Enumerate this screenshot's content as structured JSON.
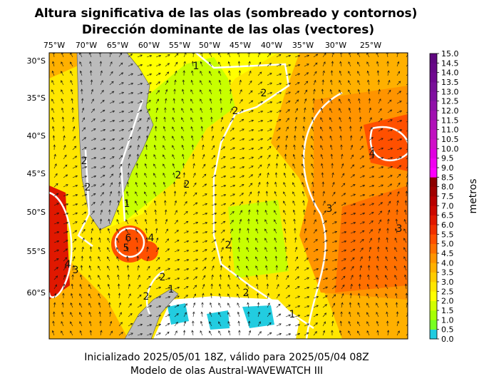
{
  "title": [
    "Altura significativa de las olas (sombreado y contornos)",
    "Dirección dominante de las olas (vectores)"
  ],
  "lon_labels": [
    "75°W",
    "70°W",
    "65°W",
    "60°W",
    "55°W",
    "50°W",
    "45°W",
    "40°W",
    "35°W",
    "30°W",
    "25°W"
  ],
  "lat_labels": [
    "30°S",
    "35°S",
    "40°S",
    "45°S",
    "50°S",
    "55°S",
    "60°S"
  ],
  "contour_labels": [
    "1",
    "2",
    "2",
    "4",
    "3",
    "3",
    "2",
    "2",
    "1",
    "4",
    "3",
    "6",
    "5",
    "4",
    "2",
    "2",
    "1",
    "2",
    "2",
    "1",
    "2",
    "2"
  ],
  "colorbar": {
    "label": "metros",
    "ticks": [
      "0.0",
      "0.5",
      "1.0",
      "1.5",
      "2.0",
      "2.5",
      "3.0",
      "3.5",
      "4.0",
      "4.5",
      "5.0",
      "5.5",
      "6.0",
      "6.5",
      "7.0",
      "7.5",
      "8.0",
      "8.5",
      "9.0",
      "9.5",
      "10.0",
      "10.5",
      "11.0",
      "11.5",
      "12.0",
      "12.5",
      "13.0",
      "13.5",
      "14.0",
      "14.5",
      "15.0"
    ],
    "colors": [
      "#22cce0",
      "#77ff22",
      "#a6ff00",
      "#d2ff00",
      "#ffff00",
      "#ffe600",
      "#ffcc00",
      "#ffb000",
      "#ff9400",
      "#ff7000",
      "#ff5000",
      "#f03000",
      "#e01800",
      "#cc0800",
      "#b80000",
      "#a00000",
      "#8c0000",
      "#ff00ff",
      "#f000f0",
      "#e000e0",
      "#d010c8",
      "#c010c0",
      "#b010b8",
      "#a010b0",
      "#9010a8",
      "#8010a0",
      "#781098",
      "#700890",
      "#680888",
      "#600880"
    ]
  },
  "footer": [
    "Inicializado 2025/05/01 18Z, válido para 2025/05/04 08Z",
    "Modelo de olas Austral-WAVEWATCH III"
  ]
}
